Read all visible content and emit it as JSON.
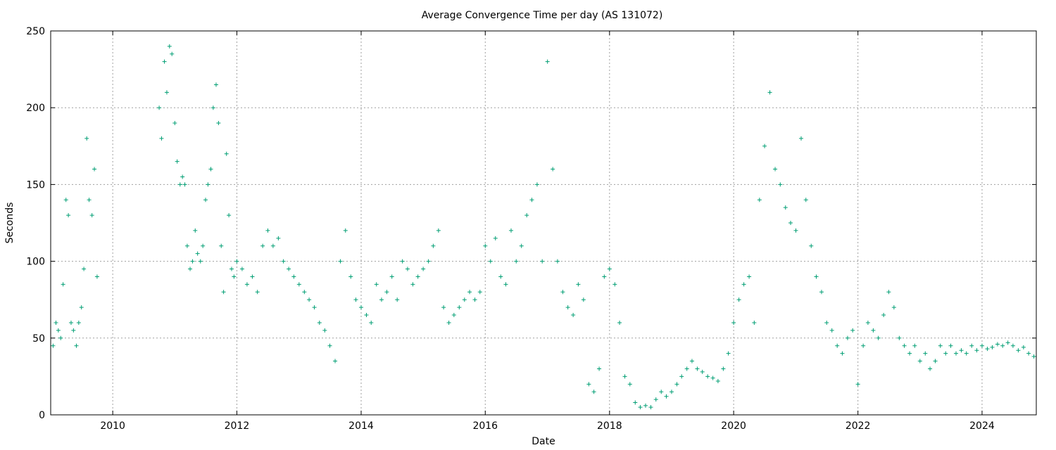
{
  "chart_data": {
    "type": "scatter",
    "title": "Average Convergence Time per day (AS 131072)",
    "xlabel": "Date",
    "ylabel": "Seconds",
    "xlim": [
      "2009-01-01",
      "2024-11-15"
    ],
    "ylim": [
      0,
      250
    ],
    "x_ticks": [
      "2010",
      "2012",
      "2014",
      "2016",
      "2018",
      "2020",
      "2022",
      "2024"
    ],
    "y_ticks": [
      0,
      50,
      100,
      150,
      200,
      250
    ],
    "grid": true,
    "marker": "plus",
    "color": "#009e73",
    "series": [
      {
        "x": [
          "2009-01-15",
          "2009-02-01",
          "2009-02-15",
          "2009-03-01",
          "2009-03-15",
          "2009-04-01",
          "2009-04-15",
          "2009-05-01",
          "2009-05-15",
          "2009-06-01",
          "2009-06-15",
          "2009-07-01",
          "2009-07-15",
          "2009-08-01",
          "2009-08-15",
          "2009-09-01",
          "2009-09-15",
          "2009-10-01",
          "2010-10-01",
          "2010-10-15",
          "2010-11-01",
          "2010-11-15",
          "2010-12-01",
          "2010-12-15",
          "2011-01-01",
          "2011-01-15",
          "2011-02-01",
          "2011-02-15",
          "2011-03-01",
          "2011-03-15",
          "2011-04-01",
          "2011-04-15",
          "2011-05-01",
          "2011-05-15",
          "2011-06-01",
          "2011-06-15",
          "2011-07-01",
          "2011-07-15",
          "2011-08-01",
          "2011-08-15",
          "2011-09-01",
          "2011-09-15",
          "2011-10-01",
          "2011-10-15",
          "2011-11-01",
          "2011-11-15",
          "2011-12-01",
          "2011-12-15",
          "2012-01-01",
          "2012-02-01",
          "2012-03-01",
          "2012-04-01",
          "2012-05-01",
          "2012-06-01",
          "2012-07-01",
          "2012-08-01",
          "2012-09-01",
          "2012-10-01",
          "2012-11-01",
          "2012-12-01",
          "2013-01-01",
          "2013-02-01",
          "2013-03-01",
          "2013-04-01",
          "2013-05-01",
          "2013-06-01",
          "2013-07-01",
          "2013-08-01",
          "2013-09-01",
          "2013-10-01",
          "2013-11-01",
          "2013-12-01",
          "2014-01-01",
          "2014-02-01",
          "2014-03-01",
          "2014-04-01",
          "2014-05-01",
          "2014-06-01",
          "2014-07-01",
          "2014-08-01",
          "2014-09-01",
          "2014-10-01",
          "2014-11-01",
          "2014-12-01",
          "2015-01-01",
          "2015-02-01",
          "2015-03-01",
          "2015-04-01",
          "2015-05-01",
          "2015-06-01",
          "2015-07-01",
          "2015-08-01",
          "2015-09-01",
          "2015-10-01",
          "2015-11-01",
          "2015-12-01",
          "2016-01-01",
          "2016-02-01",
          "2016-03-01",
          "2016-04-01",
          "2016-05-01",
          "2016-06-01",
          "2016-07-01",
          "2016-08-01",
          "2016-09-01",
          "2016-10-01",
          "2016-11-01",
          "2016-12-01",
          "2017-01-01",
          "2017-02-01",
          "2017-03-01",
          "2017-04-01",
          "2017-05-01",
          "2017-06-01",
          "2017-07-01",
          "2017-08-01",
          "2017-09-01",
          "2017-10-01",
          "2017-11-01",
          "2017-12-01",
          "2018-01-01",
          "2018-02-01",
          "2018-03-01",
          "2018-04-01",
          "2018-05-01",
          "2018-06-01",
          "2018-07-01",
          "2018-08-01",
          "2018-09-01",
          "2018-10-01",
          "2018-11-01",
          "2018-12-01",
          "2019-01-01",
          "2019-02-01",
          "2019-03-01",
          "2019-04-01",
          "2019-05-01",
          "2019-06-01",
          "2019-07-01",
          "2019-08-01",
          "2019-09-01",
          "2019-10-01",
          "2019-11-01",
          "2019-12-01",
          "2020-01-01",
          "2020-02-01",
          "2020-03-01",
          "2020-04-01",
          "2020-05-01",
          "2020-06-01",
          "2020-07-01",
          "2020-08-01",
          "2020-09-01",
          "2020-10-01",
          "2020-11-01",
          "2020-12-01",
          "2021-01-01",
          "2021-02-01",
          "2021-03-01",
          "2021-04-01",
          "2021-05-01",
          "2021-06-01",
          "2021-07-01",
          "2021-08-01",
          "2021-09-01",
          "2021-10-01",
          "2021-11-01",
          "2021-12-01",
          "2022-01-01",
          "2022-02-01",
          "2022-03-01",
          "2022-04-01",
          "2022-05-01",
          "2022-06-01",
          "2022-07-01",
          "2022-08-01",
          "2022-09-01",
          "2022-10-01",
          "2022-11-01",
          "2022-12-01",
          "2023-01-01",
          "2023-02-01",
          "2023-03-01",
          "2023-04-01",
          "2023-05-01",
          "2023-06-01",
          "2023-07-01",
          "2023-08-01",
          "2023-09-01",
          "2023-10-01",
          "2023-11-01",
          "2023-12-01",
          "2024-01-01",
          "2024-02-01",
          "2024-03-01",
          "2024-04-01",
          "2024-05-01",
          "2024-06-01",
          "2024-07-01",
          "2024-08-01",
          "2024-09-01",
          "2024-10-01",
          "2024-11-01"
        ],
        "y": [
          45,
          60,
          55,
          50,
          85,
          140,
          130,
          60,
          55,
          45,
          60,
          70,
          95,
          180,
          140,
          130,
          160,
          90,
          200,
          180,
          230,
          210,
          240,
          235,
          190,
          165,
          150,
          155,
          150,
          110,
          95,
          100,
          120,
          105,
          100,
          110,
          140,
          150,
          160,
          200,
          215,
          190,
          110,
          80,
          170,
          130,
          95,
          90,
          100,
          95,
          85,
          90,
          80,
          110,
          120,
          110,
          115,
          100,
          95,
          90,
          85,
          80,
          75,
          70,
          60,
          55,
          45,
          35,
          100,
          120,
          90,
          75,
          70,
          65,
          60,
          85,
          75,
          80,
          90,
          75,
          100,
          95,
          85,
          90,
          95,
          100,
          110,
          120,
          70,
          60,
          65,
          70,
          75,
          80,
          75,
          80,
          110,
          100,
          115,
          90,
          85,
          120,
          100,
          110,
          130,
          140,
          150,
          100,
          230,
          160,
          100,
          80,
          70,
          65,
          85,
          75,
          20,
          15,
          30,
          90,
          95,
          85,
          60,
          25,
          20,
          8,
          5,
          6,
          5,
          10,
          15,
          12,
          15,
          20,
          25,
          30,
          35,
          30,
          28,
          25,
          24,
          22,
          30,
          40,
          60,
          75,
          85,
          90,
          60,
          140,
          175,
          210,
          160,
          150,
          135,
          125,
          120,
          180,
          140,
          110,
          90,
          80,
          60,
          55,
          45,
          40,
          50,
          55,
          20,
          45,
          60,
          55,
          50,
          65,
          80,
          70,
          50,
          45,
          40,
          45,
          35,
          40,
          30,
          35,
          45,
          40,
          45,
          40,
          42,
          40,
          45,
          42,
          45,
          43,
          44,
          46,
          45,
          47,
          45,
          42,
          44,
          40,
          38
        ]
      }
    ]
  }
}
